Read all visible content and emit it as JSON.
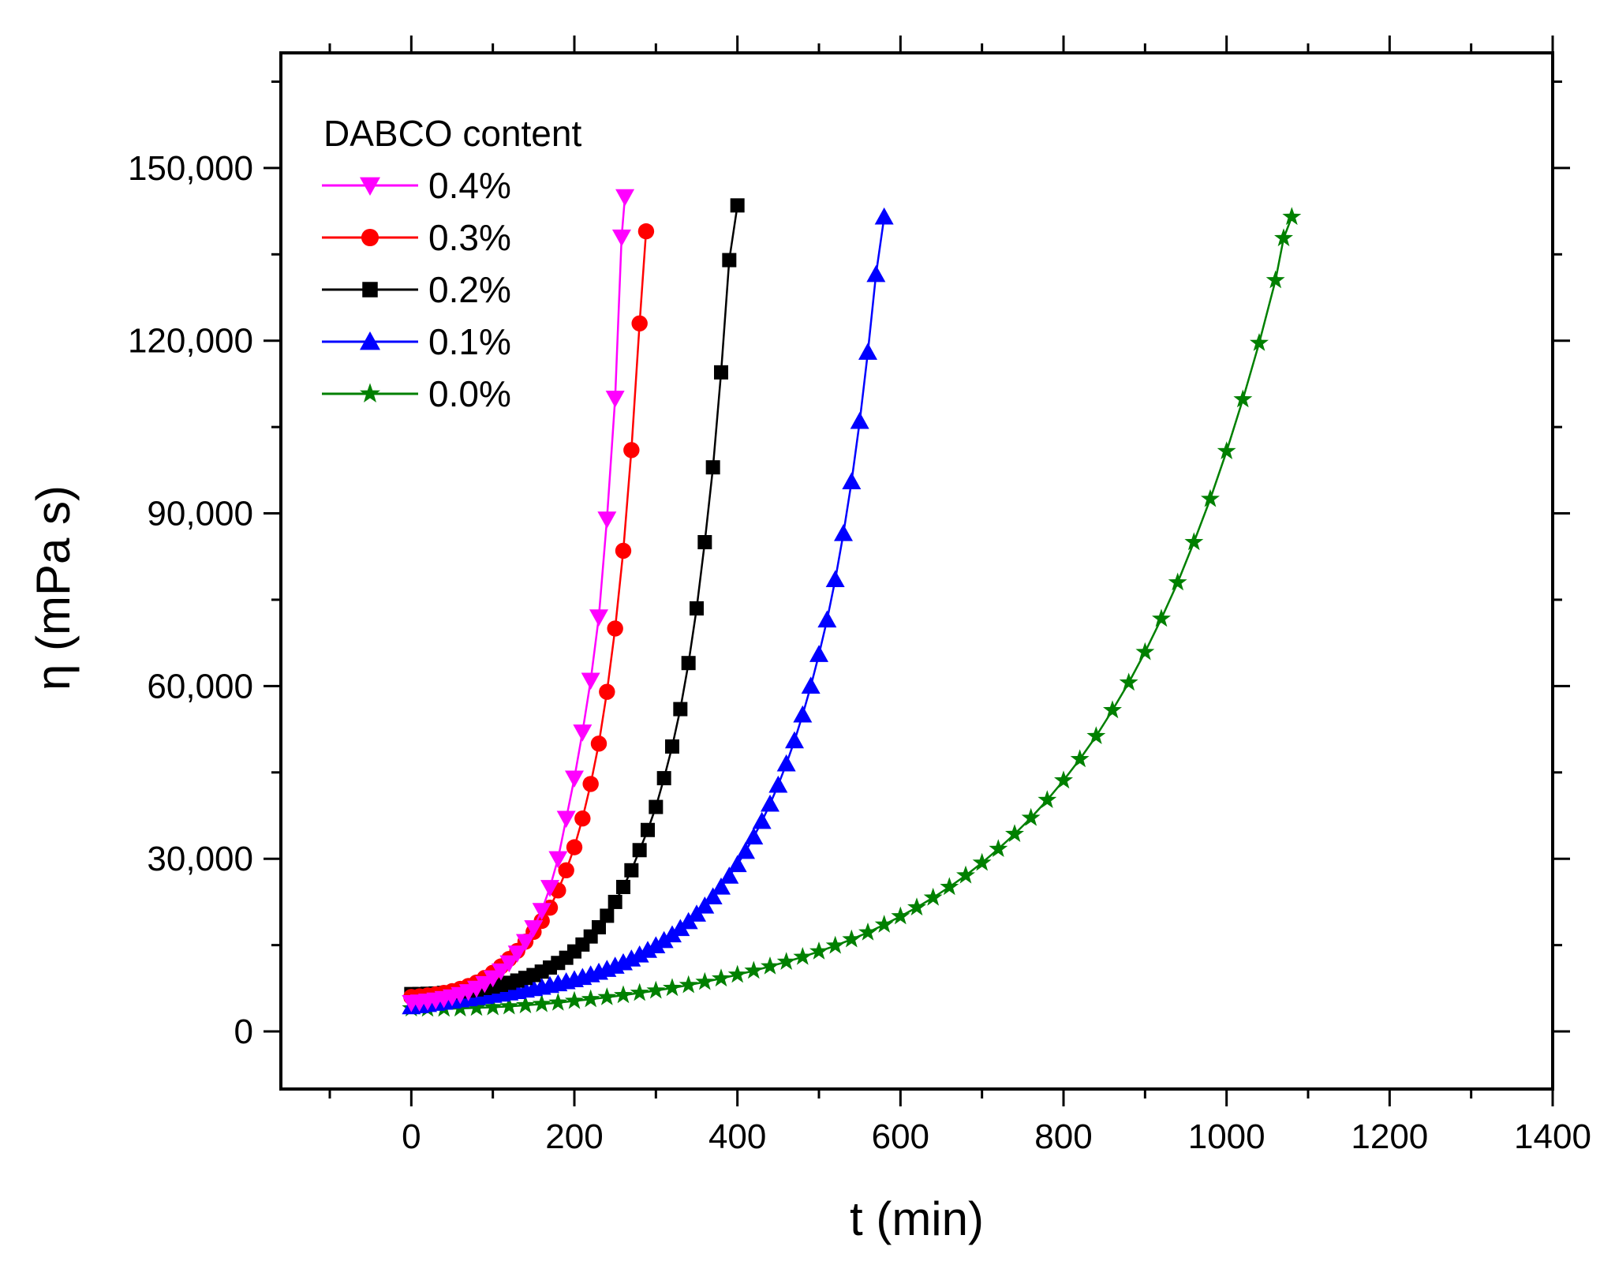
{
  "chart_data": {
    "type": "line",
    "title": "",
    "xlabel": "t (min)",
    "ylabel": "η (mPa s)",
    "xlim": [
      -160,
      1400
    ],
    "ylim": [
      -10000,
      170000
    ],
    "xticks": [
      0,
      200,
      400,
      600,
      800,
      1000,
      1200,
      1400
    ],
    "xtick_labels": [
      "0",
      "200",
      "400",
      "600",
      "800",
      "1000",
      "1200",
      "1400"
    ],
    "yticks": [
      0,
      30000,
      60000,
      90000,
      120000,
      150000
    ],
    "ytick_labels": [
      "0",
      "30,000",
      "60,000",
      "90,000",
      "120,000",
      "150,000"
    ],
    "legend": {
      "title": "DABCO content",
      "position": "top-left"
    },
    "series": [
      {
        "name": "0.4%",
        "color": "#ff00ff",
        "marker": "triangle-down",
        "points": [
          [
            0,
            5000
          ],
          [
            10,
            5100
          ],
          [
            20,
            5250
          ],
          [
            30,
            5450
          ],
          [
            40,
            5700
          ],
          [
            50,
            6000
          ],
          [
            60,
            6400
          ],
          [
            70,
            6900
          ],
          [
            80,
            7500
          ],
          [
            90,
            8300
          ],
          [
            100,
            9300
          ],
          [
            110,
            10500
          ],
          [
            120,
            11900
          ],
          [
            130,
            13600
          ],
          [
            140,
            15600
          ],
          [
            150,
            18000
          ],
          [
            160,
            21000
          ],
          [
            170,
            25000
          ],
          [
            180,
            30000
          ],
          [
            190,
            37000
          ],
          [
            200,
            44000
          ],
          [
            210,
            52000
          ],
          [
            220,
            61000
          ],
          [
            230,
            72000
          ],
          [
            240,
            89000
          ],
          [
            250,
            110000
          ],
          [
            258,
            138000
          ],
          [
            262,
            145000
          ]
        ]
      },
      {
        "name": "0.3%",
        "color": "#ff0000",
        "marker": "circle",
        "points": [
          [
            0,
            6000
          ],
          [
            10,
            6100
          ],
          [
            20,
            6250
          ],
          [
            30,
            6450
          ],
          [
            40,
            6700
          ],
          [
            50,
            7000
          ],
          [
            60,
            7400
          ],
          [
            70,
            7900
          ],
          [
            80,
            8500
          ],
          [
            90,
            9300
          ],
          [
            100,
            10200
          ],
          [
            110,
            11300
          ],
          [
            120,
            12600
          ],
          [
            130,
            14000
          ],
          [
            140,
            15600
          ],
          [
            150,
            17300
          ],
          [
            160,
            19200
          ],
          [
            170,
            21500
          ],
          [
            180,
            24500
          ],
          [
            190,
            28000
          ],
          [
            200,
            32000
          ],
          [
            210,
            37000
          ],
          [
            220,
            43000
          ],
          [
            230,
            50000
          ],
          [
            240,
            59000
          ],
          [
            250,
            70000
          ],
          [
            260,
            83500
          ],
          [
            270,
            101000
          ],
          [
            280,
            123000
          ],
          [
            288,
            139000
          ]
        ]
      },
      {
        "name": "0.2%",
        "color": "#000000",
        "marker": "square",
        "points": [
          [
            0,
            6500
          ],
          [
            10,
            6500
          ],
          [
            20,
            6550
          ],
          [
            30,
            6600
          ],
          [
            40,
            6700
          ],
          [
            50,
            6800
          ],
          [
            60,
            6950
          ],
          [
            70,
            7100
          ],
          [
            80,
            7300
          ],
          [
            90,
            7550
          ],
          [
            100,
            7800
          ],
          [
            110,
            8100
          ],
          [
            120,
            8450
          ],
          [
            130,
            8850
          ],
          [
            140,
            9300
          ],
          [
            150,
            9800
          ],
          [
            160,
            10400
          ],
          [
            170,
            11100
          ],
          [
            180,
            11900
          ],
          [
            190,
            12800
          ],
          [
            200,
            13900
          ],
          [
            210,
            15100
          ],
          [
            220,
            16500
          ],
          [
            230,
            18100
          ],
          [
            240,
            20100
          ],
          [
            250,
            22500
          ],
          [
            260,
            25100
          ],
          [
            270,
            28000
          ],
          [
            280,
            31500
          ],
          [
            290,
            35000
          ],
          [
            300,
            39000
          ],
          [
            310,
            44000
          ],
          [
            320,
            49500
          ],
          [
            330,
            56000
          ],
          [
            340,
            64000
          ],
          [
            350,
            73500
          ],
          [
            360,
            85000
          ],
          [
            370,
            98000
          ],
          [
            380,
            114500
          ],
          [
            390,
            134000
          ],
          [
            400,
            143500
          ]
        ]
      },
      {
        "name": "0.1%",
        "color": "#0000ff",
        "marker": "triangle-up",
        "points": [
          [
            0,
            4300
          ],
          [
            10,
            4500
          ],
          [
            20,
            4700
          ],
          [
            30,
            4900
          ],
          [
            40,
            5100
          ],
          [
            50,
            5300
          ],
          [
            60,
            5500
          ],
          [
            70,
            5700
          ],
          [
            80,
            5900
          ],
          [
            90,
            6100
          ],
          [
            100,
            6300
          ],
          [
            110,
            6500
          ],
          [
            120,
            6700
          ],
          [
            130,
            6950
          ],
          [
            140,
            7200
          ],
          [
            150,
            7450
          ],
          [
            160,
            7700
          ],
          [
            170,
            8000
          ],
          [
            180,
            8300
          ],
          [
            190,
            8650
          ],
          [
            200,
            9000
          ],
          [
            210,
            9400
          ],
          [
            220,
            9850
          ],
          [
            230,
            10300
          ],
          [
            240,
            10800
          ],
          [
            250,
            11350
          ],
          [
            260,
            11950
          ],
          [
            270,
            12600
          ],
          [
            280,
            13300
          ],
          [
            290,
            14100
          ],
          [
            300,
            14900
          ],
          [
            310,
            15800
          ],
          [
            320,
            16800
          ],
          [
            330,
            17900
          ],
          [
            340,
            19100
          ],
          [
            350,
            20400
          ],
          [
            360,
            21800
          ],
          [
            370,
            23400
          ],
          [
            380,
            25100
          ],
          [
            390,
            27000
          ],
          [
            400,
            29000
          ],
          [
            410,
            31300
          ],
          [
            420,
            33800
          ],
          [
            430,
            36500
          ],
          [
            440,
            39500
          ],
          [
            450,
            42800
          ],
          [
            460,
            46500
          ],
          [
            470,
            50500
          ],
          [
            480,
            55000
          ],
          [
            490,
            60000
          ],
          [
            500,
            65500
          ],
          [
            510,
            71500
          ],
          [
            520,
            78500
          ],
          [
            530,
            86500
          ],
          [
            540,
            95500
          ],
          [
            550,
            106000
          ],
          [
            560,
            118000
          ],
          [
            570,
            131500
          ],
          [
            580,
            141500
          ]
        ]
      },
      {
        "name": "0.0%",
        "color": "#008000",
        "marker": "star",
        "points": [
          [
            0,
            4000
          ],
          [
            20,
            3950
          ],
          [
            40,
            3950
          ],
          [
            60,
            4000
          ],
          [
            80,
            4100
          ],
          [
            100,
            4200
          ],
          [
            120,
            4350
          ],
          [
            140,
            4550
          ],
          [
            160,
            4750
          ],
          [
            180,
            5000
          ],
          [
            200,
            5300
          ],
          [
            220,
            5600
          ],
          [
            240,
            5950
          ],
          [
            260,
            6300
          ],
          [
            280,
            6700
          ],
          [
            300,
            7100
          ],
          [
            320,
            7550
          ],
          [
            340,
            8050
          ],
          [
            360,
            8600
          ],
          [
            380,
            9200
          ],
          [
            400,
            9850
          ],
          [
            420,
            10550
          ],
          [
            440,
            11300
          ],
          [
            460,
            12100
          ],
          [
            480,
            12950
          ],
          [
            500,
            13900
          ],
          [
            520,
            14900
          ],
          [
            540,
            16000
          ],
          [
            560,
            17200
          ],
          [
            580,
            18550
          ],
          [
            600,
            20000
          ],
          [
            620,
            21550
          ],
          [
            640,
            23250
          ],
          [
            660,
            25100
          ],
          [
            680,
            27100
          ],
          [
            700,
            29300
          ],
          [
            720,
            31700
          ],
          [
            740,
            34300
          ],
          [
            760,
            37100
          ],
          [
            780,
            40200
          ],
          [
            800,
            43600
          ],
          [
            820,
            47300
          ],
          [
            840,
            51300
          ],
          [
            860,
            55800
          ],
          [
            880,
            60600
          ],
          [
            900,
            65900
          ],
          [
            920,
            71700
          ],
          [
            940,
            78000
          ],
          [
            960,
            85000
          ],
          [
            980,
            92500
          ],
          [
            1000,
            100800
          ],
          [
            1020,
            109800
          ],
          [
            1040,
            119600
          ],
          [
            1060,
            130500
          ],
          [
            1070,
            137800
          ],
          [
            1080,
            141500
          ]
        ]
      }
    ]
  }
}
